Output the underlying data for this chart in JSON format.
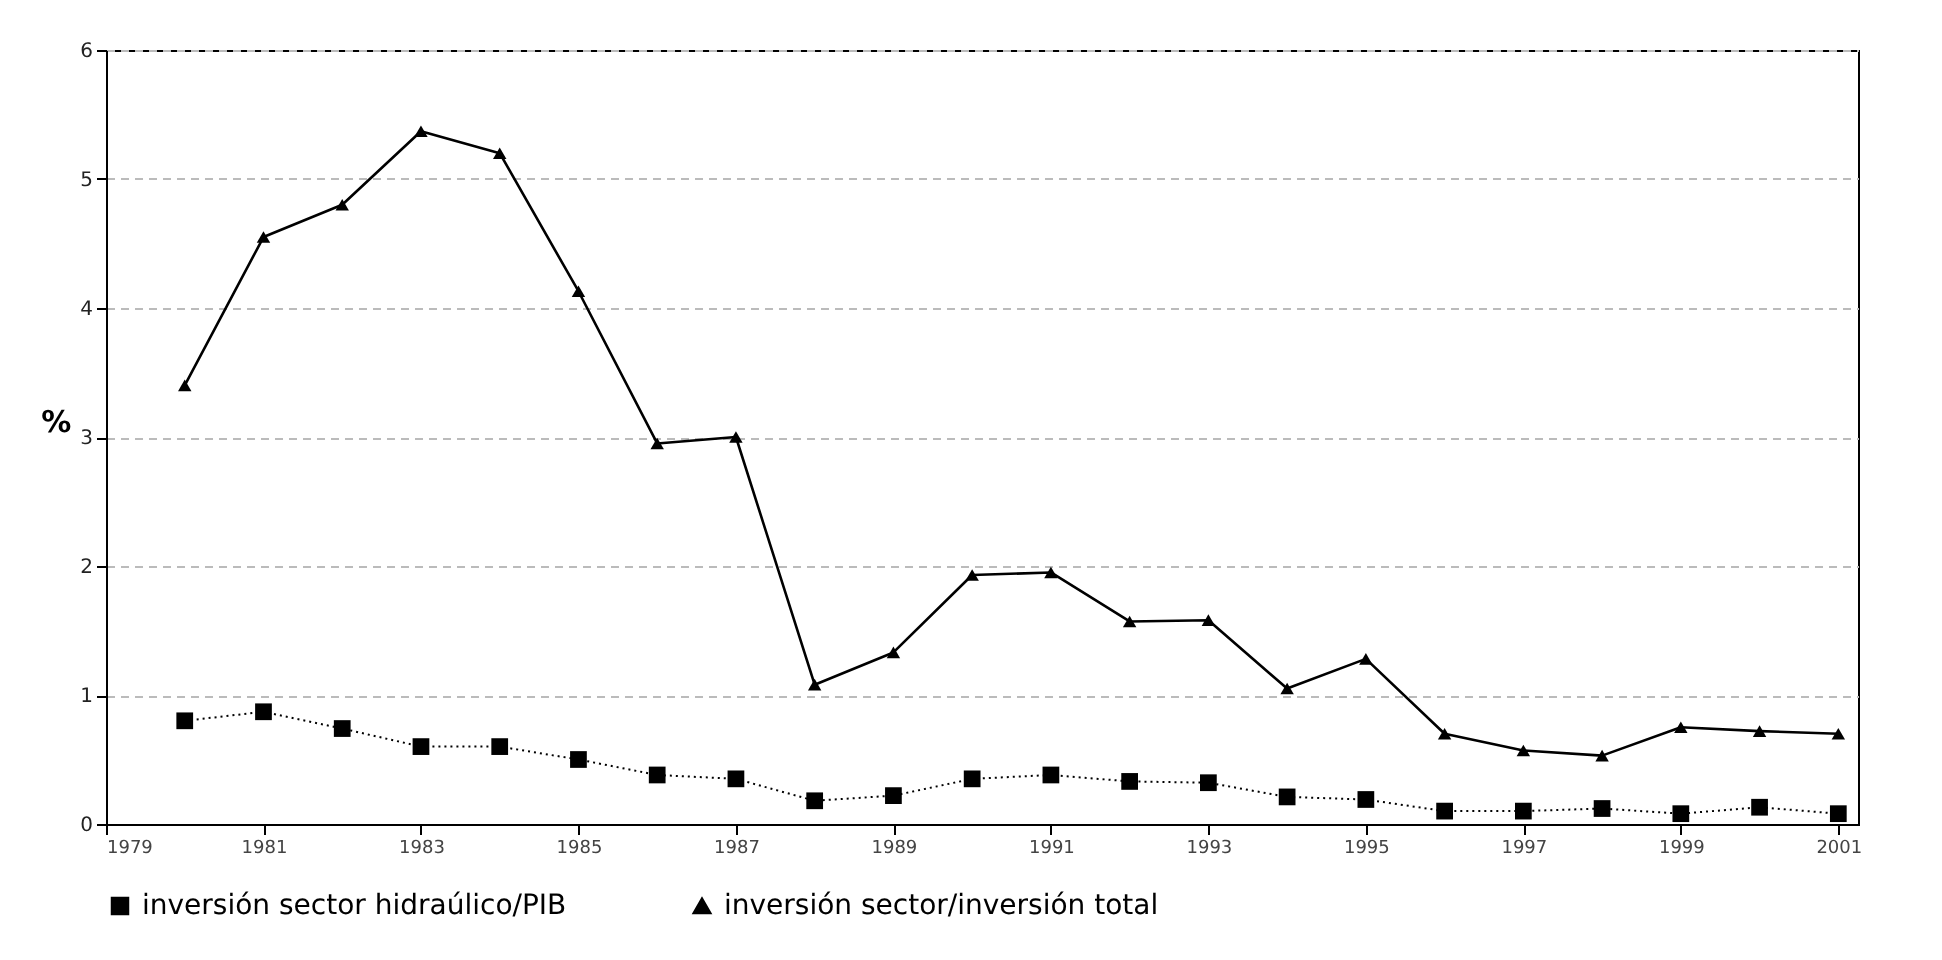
{
  "chart_data": {
    "type": "line",
    "ylabel": "%",
    "x": [
      1980,
      1981,
      1982,
      1983,
      1984,
      1985,
      1986,
      1987,
      1988,
      1989,
      1990,
      1991,
      1992,
      1993,
      1994,
      1995,
      1996,
      1997,
      1998,
      1999,
      2000,
      2001
    ],
    "series": [
      {
        "name": "inversión sector hidraúlico/PIB",
        "color": "#000000",
        "marker": "square",
        "line_style": "dotted",
        "values": [
          0.8,
          0.87,
          0.74,
          0.6,
          0.6,
          0.5,
          0.38,
          0.35,
          0.18,
          0.22,
          0.35,
          0.38,
          0.33,
          0.32,
          0.21,
          0.19,
          0.1,
          0.1,
          0.12,
          0.08,
          0.13,
          0.08
        ]
      },
      {
        "name": "inversión sector/inversión total",
        "color": "#000000",
        "marker": "triangle",
        "line_style": "solid",
        "values": [
          3.4,
          4.55,
          4.8,
          5.37,
          5.2,
          4.13,
          2.95,
          3.0,
          1.08,
          1.33,
          1.93,
          1.95,
          1.57,
          1.58,
          1.05,
          1.28,
          0.7,
          0.57,
          0.53,
          0.75,
          0.72,
          0.7
        ]
      }
    ],
    "xlim": [
      1979,
      2001.25
    ],
    "xticks": [
      1979,
      1981,
      1983,
      1985,
      1987,
      1989,
      1991,
      1993,
      1995,
      1997,
      1999,
      2001
    ],
    "ylim": [
      0,
      6
    ],
    "yticks": [
      0,
      1,
      2,
      3,
      4,
      5,
      6
    ],
    "grid": "y",
    "legend": "bottom"
  }
}
